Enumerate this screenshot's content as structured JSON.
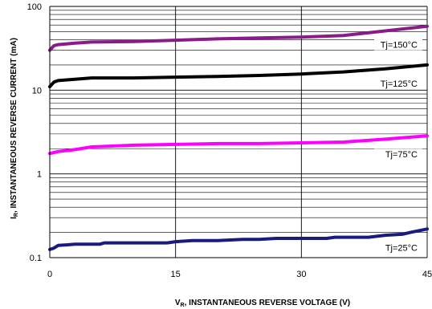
{
  "chart_data": {
    "type": "line",
    "xscale": "linear",
    "yscale": "log",
    "xlim": [
      0,
      45
    ],
    "ylim": [
      0.1,
      100
    ],
    "xticks": [
      0,
      15,
      30,
      45
    ],
    "xtick_labels": [
      "0",
      "15",
      "30",
      "45"
    ],
    "yticks": [
      0.1,
      1,
      10,
      100
    ],
    "ytick_labels": [
      "0.1",
      "1",
      "10",
      "100"
    ],
    "xlabel_main": "V",
    "xlabel_sub": "R",
    "xlabel_rest": ", INSTANTANEOUS REVERSE VOLTAGE (V)",
    "ylabel_main": "I",
    "ylabel_sub": "R",
    "ylabel_rest": ", INSTANTANEOUS REVERSE CURRENT (mA)",
    "grid": true,
    "series": [
      {
        "name": "Tj=150°C",
        "color": "#8b1a8b",
        "x": [
          0,
          0.5,
          1,
          3,
          5,
          10,
          15,
          20,
          25,
          30,
          35,
          40,
          45
        ],
        "y": [
          30,
          34,
          35,
          36.5,
          37.5,
          38,
          39.5,
          41,
          42,
          43,
          45,
          51,
          58
        ]
      },
      {
        "name": "Tj=125°C",
        "color": "#000000",
        "x": [
          0,
          0.5,
          1,
          3,
          5,
          10,
          15,
          20,
          25,
          30,
          35,
          40,
          45
        ],
        "y": [
          11,
          12.5,
          13,
          13.5,
          14,
          14,
          14.3,
          14.6,
          15,
          15.6,
          16.5,
          18,
          20
        ]
      },
      {
        "name": "Tj=75°C",
        "color": "#ff00ff",
        "x": [
          0,
          0.5,
          1,
          3,
          5,
          10,
          15,
          20,
          25,
          30,
          35,
          40,
          45
        ],
        "y": [
          1.75,
          1.8,
          1.85,
          1.95,
          2.1,
          2.2,
          2.25,
          2.3,
          2.3,
          2.35,
          2.4,
          2.6,
          2.85
        ]
      },
      {
        "name": "Tj=25°C",
        "color": "#1a1a80",
        "x": [
          0,
          0.5,
          1,
          2,
          3,
          4,
          5,
          6,
          6.5,
          7,
          8,
          14,
          15,
          17,
          20,
          23,
          25,
          27,
          30,
          33,
          34,
          35,
          37,
          38,
          39,
          40,
          42,
          43,
          45
        ],
        "y": [
          0.125,
          0.13,
          0.14,
          0.142,
          0.145,
          0.145,
          0.145,
          0.145,
          0.15,
          0.15,
          0.15,
          0.15,
          0.155,
          0.16,
          0.16,
          0.165,
          0.165,
          0.17,
          0.17,
          0.17,
          0.175,
          0.175,
          0.175,
          0.175,
          0.18,
          0.185,
          0.19,
          0.2,
          0.22
        ]
      }
    ]
  }
}
